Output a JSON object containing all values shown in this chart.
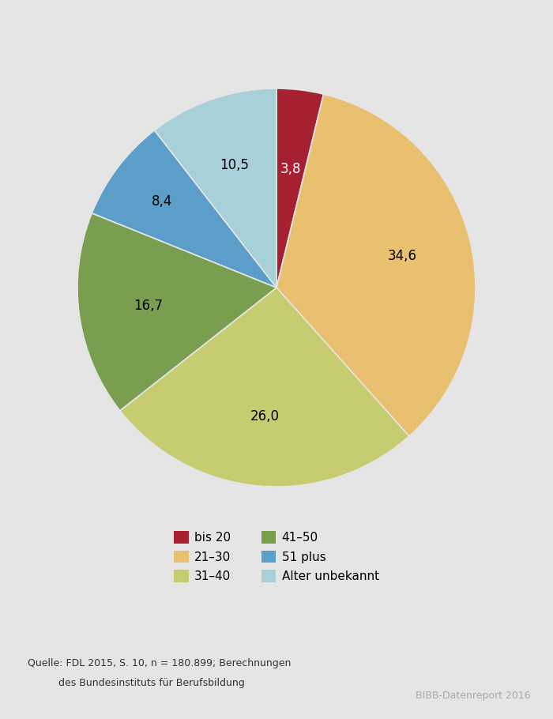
{
  "slices": [
    3.8,
    34.6,
    26.0,
    16.7,
    8.4,
    10.5
  ],
  "labels": [
    "bis 20",
    "21–30",
    "31–40",
    "41–50",
    "51 plus",
    "Alter unbekannt"
  ],
  "colors": [
    "#a52030",
    "#e8c070",
    "#c8cc70",
    "#7a9e50",
    "#5b9ec9",
    "#a8d0d8"
  ],
  "label_values": [
    "3,8",
    "34,6",
    "26,0",
    "16,7",
    "8,4",
    "10,5"
  ],
  "label_colors": [
    "white",
    "black",
    "black",
    "black",
    "black",
    "black"
  ],
  "source_text_line1": "Quelle: FDL 2015, S. 10, n = 180.899; Berechnungen",
  "source_text_line2": "des Bundesinstituts für Berufsbildung",
  "bibb_text": "BIBB-Datenreport 2016",
  "background_color": "#e5e5e5",
  "startangle": 90
}
